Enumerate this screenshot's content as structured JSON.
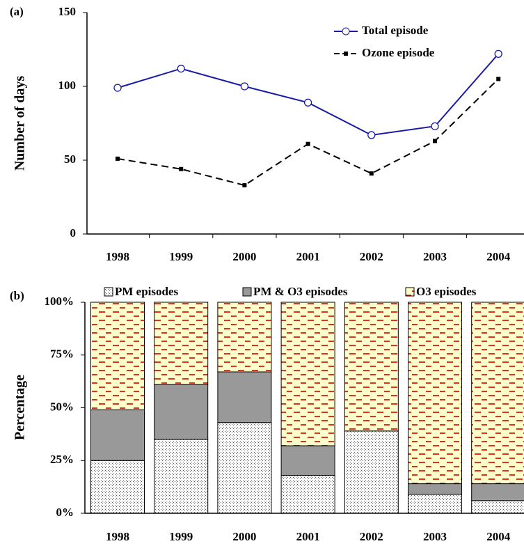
{
  "chart_data": [
    {
      "type": "line",
      "panel_label": "(a)",
      "y_label": "Number of days",
      "categories": [
        "1998",
        "1999",
        "2000",
        "2001",
        "2002",
        "2003",
        "2004"
      ],
      "series": [
        {
          "name": "Total episode",
          "color": "#1a1aa6",
          "marker": "circle",
          "dash": "solid",
          "values": [
            99,
            112,
            100,
            89,
            67,
            73,
            122
          ]
        },
        {
          "name": "Ozone episode",
          "color": "#000000",
          "marker": "square",
          "dash": "dashed",
          "values": [
            51,
            44,
            33,
            61,
            41,
            63,
            105
          ]
        }
      ],
      "ylim": [
        0,
        150
      ],
      "yticks": [
        0,
        50,
        100,
        150
      ],
      "legend": "upper right"
    },
    {
      "type": "stacked-bar",
      "panel_label": "(b)",
      "y_label": "Percentage",
      "categories": [
        "1998",
        "1999",
        "2000",
        "2001",
        "2002",
        "2003",
        "2004"
      ],
      "series": [
        {
          "name": "PM episodes",
          "color": "#ffffff",
          "pattern": "dots",
          "values": [
            25,
            35,
            43,
            18,
            39,
            9,
            6
          ]
        },
        {
          "name": "PM & O3 episodes",
          "color": "#999999",
          "pattern": "solid",
          "values": [
            24,
            26,
            24,
            14,
            0,
            5,
            8
          ]
        },
        {
          "name": "O3 episodes",
          "color": "#ffffcc",
          "pattern": "red-dashes",
          "values": [
            51,
            39,
            33,
            68,
            61,
            86,
            86
          ]
        }
      ],
      "ylim": [
        0,
        100
      ],
      "yticks": [
        {
          "value": 0,
          "label": "0%"
        },
        {
          "value": 25,
          "label": "25%"
        },
        {
          "value": 50,
          "label": "50%"
        },
        {
          "value": 75,
          "label": "75%"
        },
        {
          "value": 100,
          "label": "100%"
        }
      ],
      "legend": "top"
    }
  ]
}
